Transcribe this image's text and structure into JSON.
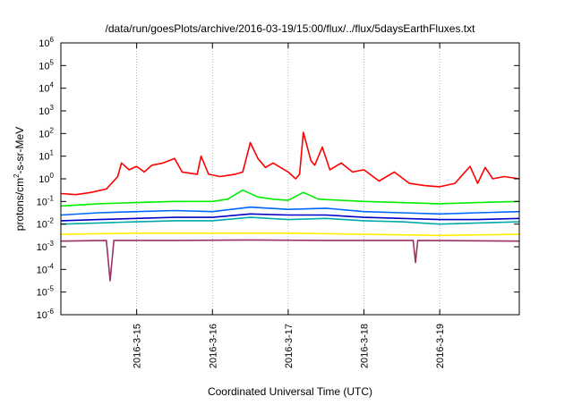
{
  "chart_data": {
    "type": "line",
    "title": "/data/run/goesPlots/archive/2016-03-19/15:00/flux/../flux/5daysEarthFluxes.txt",
    "xlabel": "Coordinated Universal Time (UTC)",
    "ylabel": {
      "prefix": "protons/cm",
      "sup": "2",
      "suffix": "-s-sr-MeV"
    },
    "yscale": "log",
    "ylim_exp": [
      -6,
      6
    ],
    "y_ticks": [
      {
        "exp": -6,
        "label": "10",
        "sup": "-6"
      },
      {
        "exp": -5,
        "label": "10",
        "sup": "-5"
      },
      {
        "exp": -4,
        "label": "10",
        "sup": "-4"
      },
      {
        "exp": -3,
        "label": "10",
        "sup": "-3"
      },
      {
        "exp": -2,
        "label": "10",
        "sup": "-2"
      },
      {
        "exp": -1,
        "label": "10",
        "sup": "-1"
      },
      {
        "exp": 0,
        "label": "10",
        "sup": "0"
      },
      {
        "exp": 1,
        "label": "10",
        "sup": "1"
      },
      {
        "exp": 2,
        "label": "10",
        "sup": "2"
      },
      {
        "exp": 3,
        "label": "10",
        "sup": "3"
      },
      {
        "exp": 4,
        "label": "10",
        "sup": "4"
      },
      {
        "exp": 5,
        "label": "10",
        "sup": "5"
      },
      {
        "exp": 6,
        "label": "10",
        "sup": "6"
      }
    ],
    "xlim_days": [
      0,
      6.05
    ],
    "x_ticks": [
      {
        "day": 1,
        "label": "2016-3-15"
      },
      {
        "day": 2,
        "label": "2016-3-16"
      },
      {
        "day": 3,
        "label": "2016-3-17"
      },
      {
        "day": 4,
        "label": "2016-3-18"
      },
      {
        "day": 5,
        "label": "2016-3-19"
      }
    ],
    "grid": true,
    "series": [
      {
        "color": "#ff0000",
        "points": [
          [
            0,
            -0.65
          ],
          [
            0.2,
            -0.7
          ],
          [
            0.4,
            -0.6
          ],
          [
            0.6,
            -0.45
          ],
          [
            0.75,
            0.1
          ],
          [
            0.8,
            0.7
          ],
          [
            0.9,
            0.4
          ],
          [
            1.0,
            0.55
          ],
          [
            1.1,
            0.3
          ],
          [
            1.2,
            0.6
          ],
          [
            1.35,
            0.7
          ],
          [
            1.5,
            0.9
          ],
          [
            1.6,
            0.3
          ],
          [
            1.8,
            0.2
          ],
          [
            1.85,
            1.0
          ],
          [
            1.95,
            0.2
          ],
          [
            2.1,
            0.1
          ],
          [
            2.3,
            0.2
          ],
          [
            2.4,
            0.3
          ],
          [
            2.5,
            1.6
          ],
          [
            2.6,
            0.9
          ],
          [
            2.7,
            0.5
          ],
          [
            2.8,
            0.7
          ],
          [
            2.95,
            0.4
          ],
          [
            3.0,
            0.3
          ],
          [
            3.1,
            0.0
          ],
          [
            3.15,
            0.2
          ],
          [
            3.2,
            2.05
          ],
          [
            3.3,
            0.8
          ],
          [
            3.35,
            0.6
          ],
          [
            3.45,
            1.4
          ],
          [
            3.55,
            0.4
          ],
          [
            3.7,
            0.7
          ],
          [
            3.85,
            0.3
          ],
          [
            4.0,
            0.4
          ],
          [
            4.2,
            -0.1
          ],
          [
            4.4,
            0.3
          ],
          [
            4.6,
            -0.2
          ],
          [
            4.8,
            -0.3
          ],
          [
            5.0,
            -0.35
          ],
          [
            5.2,
            -0.2
          ],
          [
            5.4,
            0.55
          ],
          [
            5.5,
            -0.2
          ],
          [
            5.6,
            0.5
          ],
          [
            5.7,
            0.0
          ],
          [
            5.85,
            0.1
          ],
          [
            6.05,
            0.0
          ]
        ]
      },
      {
        "color": "#00ee00",
        "points": [
          [
            0,
            -1.2
          ],
          [
            0.5,
            -1.1
          ],
          [
            1.0,
            -1.05
          ],
          [
            1.5,
            -1.0
          ],
          [
            2.0,
            -1.0
          ],
          [
            2.2,
            -0.9
          ],
          [
            2.4,
            -0.5
          ],
          [
            2.6,
            -0.8
          ],
          [
            2.8,
            -0.9
          ],
          [
            3.0,
            -0.95
          ],
          [
            3.2,
            -0.6
          ],
          [
            3.4,
            -0.9
          ],
          [
            4.0,
            -1.0
          ],
          [
            4.5,
            -1.05
          ],
          [
            5.0,
            -1.1
          ],
          [
            5.5,
            -1.05
          ],
          [
            6.05,
            -1.0
          ]
        ]
      },
      {
        "color": "#00aaaa",
        "points": [
          [
            0,
            -2.0
          ],
          [
            0.5,
            -1.95
          ],
          [
            1.0,
            -1.9
          ],
          [
            1.5,
            -1.85
          ],
          [
            2.0,
            -1.85
          ],
          [
            2.5,
            -1.7
          ],
          [
            3.0,
            -1.8
          ],
          [
            3.5,
            -1.75
          ],
          [
            4.0,
            -1.85
          ],
          [
            4.5,
            -1.9
          ],
          [
            5.0,
            -2.0
          ],
          [
            5.5,
            -1.95
          ],
          [
            6.05,
            -1.9
          ]
        ]
      },
      {
        "color": "#0066ff",
        "points": [
          [
            0,
            -1.6
          ],
          [
            0.5,
            -1.5
          ],
          [
            1.0,
            -1.45
          ],
          [
            1.5,
            -1.4
          ],
          [
            2.0,
            -1.45
          ],
          [
            2.5,
            -1.25
          ],
          [
            3.0,
            -1.35
          ],
          [
            3.5,
            -1.3
          ],
          [
            4.0,
            -1.45
          ],
          [
            4.5,
            -1.5
          ],
          [
            5.0,
            -1.55
          ],
          [
            5.5,
            -1.5
          ],
          [
            6.05,
            -1.45
          ]
        ]
      },
      {
        "color": "#0000cc",
        "points": [
          [
            0,
            -1.85
          ],
          [
            0.5,
            -1.8
          ],
          [
            1.0,
            -1.75
          ],
          [
            1.5,
            -1.7
          ],
          [
            2.0,
            -1.7
          ],
          [
            2.5,
            -1.55
          ],
          [
            3.0,
            -1.6
          ],
          [
            3.5,
            -1.6
          ],
          [
            4.0,
            -1.7
          ],
          [
            4.5,
            -1.75
          ],
          [
            5.0,
            -1.8
          ],
          [
            5.5,
            -1.8
          ],
          [
            6.05,
            -1.75
          ]
        ]
      },
      {
        "color": "#ffee00",
        "points": [
          [
            0,
            -2.45
          ],
          [
            1.0,
            -2.4
          ],
          [
            2.0,
            -2.4
          ],
          [
            3.0,
            -2.4
          ],
          [
            4.0,
            -2.45
          ],
          [
            5.0,
            -2.5
          ],
          [
            6.05,
            -2.45
          ]
        ]
      },
      {
        "color": "#993366",
        "points": [
          [
            0,
            -2.75
          ],
          [
            0.6,
            -2.72
          ],
          [
            0.65,
            -4.5
          ],
          [
            0.7,
            -2.72
          ],
          [
            1.5,
            -2.72
          ],
          [
            2.5,
            -2.7
          ],
          [
            3.5,
            -2.72
          ],
          [
            4.65,
            -2.72
          ],
          [
            4.68,
            -3.7
          ],
          [
            4.71,
            -2.72
          ],
          [
            6.05,
            -2.75
          ]
        ]
      }
    ]
  }
}
